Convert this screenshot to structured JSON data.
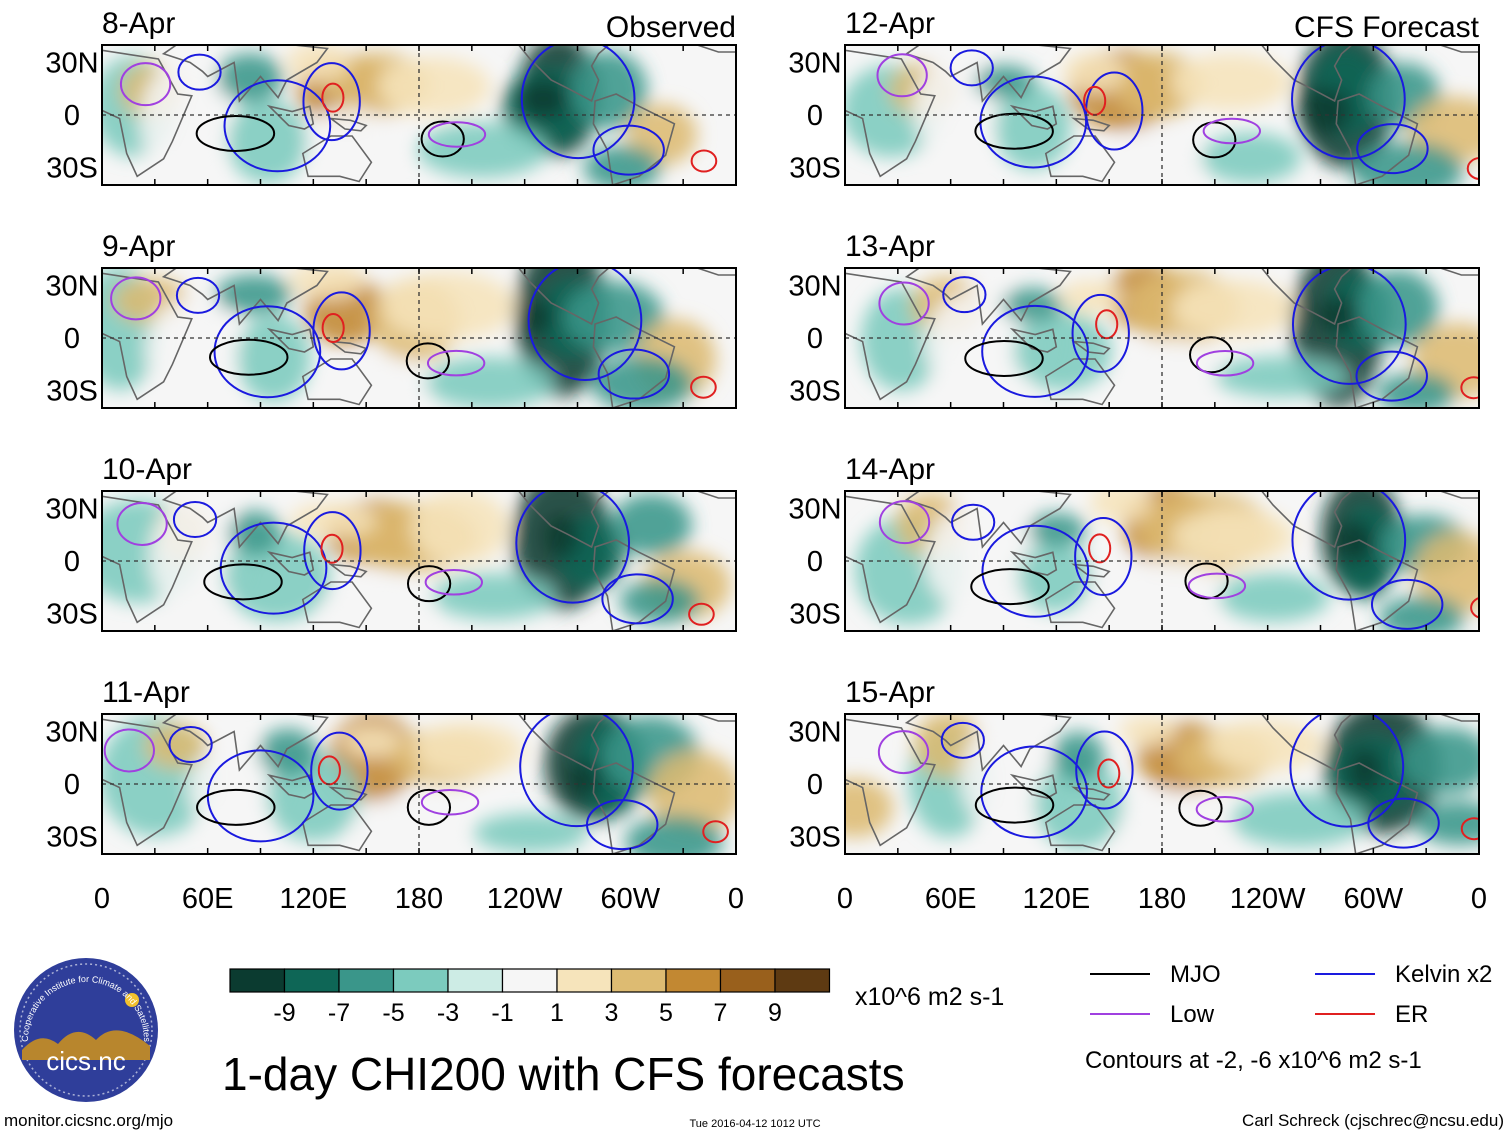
{
  "chart_data": {
    "type": "heatmap",
    "title": "1-day CHI200 with CFS forecasts",
    "units": "x10^6 m2 s-1",
    "variable": "CHI200",
    "x_tick_labels": [
      "0",
      "60E",
      "120E",
      "180",
      "120W",
      "60W",
      "0"
    ],
    "y_tick_labels": [
      "30N",
      "0",
      "30S"
    ],
    "lon_range": [
      0,
      360
    ],
    "lat_range": [
      -40,
      40
    ],
    "columns": [
      {
        "label": "Observed",
        "panels": [
          "8-Apr",
          "9-Apr",
          "10-Apr",
          "11-Apr"
        ]
      },
      {
        "label": "CFS Forecast",
        "panels": [
          "12-Apr",
          "13-Apr",
          "14-Apr",
          "15-Apr"
        ]
      }
    ],
    "colorbar": {
      "labels": [
        "-9",
        "-7",
        "-5",
        "-3",
        "-1",
        "1",
        "3",
        "5",
        "7",
        "9"
      ],
      "colors": [
        "#0b3b30",
        "#0e6656",
        "#3a968a",
        "#7ccbbe",
        "#cdece5",
        "#f6f6f6",
        "#f6e4bb",
        "#ddbb72",
        "#c28832",
        "#99601c",
        "#5e3a12"
      ]
    },
    "legend": [
      {
        "label": "MJO",
        "color": "#000000"
      },
      {
        "label": "Kelvin x2",
        "color": "#1a1adf"
      },
      {
        "label": "Low",
        "color": "#a040e0"
      },
      {
        "label": "ER",
        "color": "#e02020"
      }
    ],
    "contour_note": "Contours at -2, -6 x10^6 m2 s-1"
  },
  "logo": {
    "name": "cics.nc",
    "arc_text": "Cooperative Institute for Climate and Satellites"
  },
  "footer": {
    "left": "monitor.cicsnc.org/mjo",
    "center": "Tue 2016-04-12 1012 UTC",
    "right": "Carl Schreck (cjschrec@ncsu.edu)"
  },
  "colors": {
    "map_line": "#666666",
    "frame": "#000000"
  }
}
